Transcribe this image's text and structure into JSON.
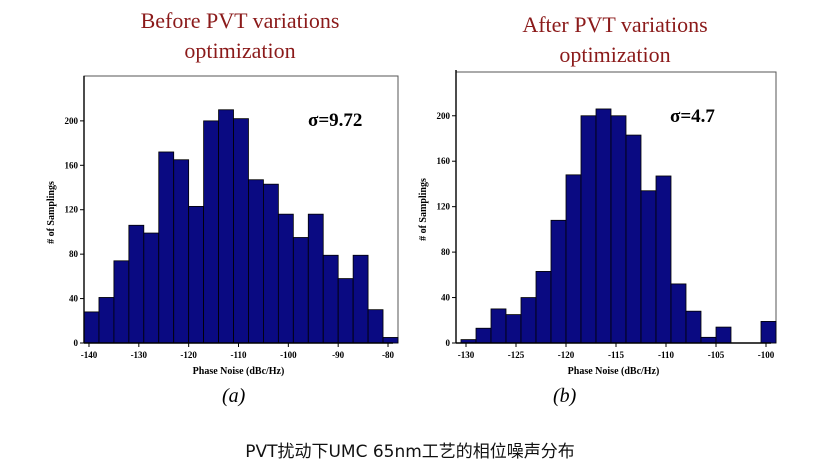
{
  "caption": "PVT扰动下UMC 65nm工艺的相位噪声分布",
  "colors": {
    "bar": "#0a0a82",
    "title": "#8b1a1a"
  },
  "chart_data": [
    {
      "type": "bar",
      "title": "Before PVT variations optimization",
      "title_lines": [
        "Before PVT variations",
        "optimization"
      ],
      "subfigure": "(a)",
      "annotation": "σ=9.72",
      "xlabel": "Phase Noise (dBc/Hz)",
      "ylabel": "# of Samplings",
      "xlim": [
        -141,
        -79
      ],
      "ylim": [
        0,
        235
      ],
      "xticks": [
        -140,
        -130,
        -120,
        -110,
        -100,
        -90,
        -80
      ],
      "yticks": [
        0,
        40,
        80,
        120,
        160,
        200
      ],
      "bin_width": 3,
      "bin_starts": [
        -141,
        -138,
        -135,
        -132,
        -129,
        -126,
        -123,
        -120,
        -117,
        -114,
        -111,
        -108,
        -105,
        -102,
        -99,
        -96,
        -93,
        -90,
        -87,
        -84,
        -81
      ],
      "values": [
        28,
        41,
        74,
        106,
        99,
        172,
        165,
        123,
        200,
        210,
        202,
        147,
        143,
        116,
        95,
        116,
        79,
        58,
        79,
        30,
        5
      ],
      "grid": false
    },
    {
      "type": "bar",
      "title": "After PVT variations optimization",
      "title_lines": [
        "After PVT variations",
        "optimization"
      ],
      "subfigure": "(b)",
      "annotation": "σ=4.7",
      "xlabel": "Phase Noise (dBc/Hz)",
      "ylabel": "# of Samplings",
      "xlim": [
        -131,
        -99.5
      ],
      "ylim": [
        0,
        235
      ],
      "xticks": [
        -130,
        -125,
        -120,
        -115,
        -110,
        -105,
        -100
      ],
      "yticks": [
        0,
        40,
        80,
        120,
        160,
        200
      ],
      "bin_width": 1.5,
      "bin_starts": [
        -130.5,
        -129,
        -127.5,
        -126,
        -124.5,
        -123,
        -121.5,
        -120,
        -118.5,
        -117,
        -115.5,
        -114,
        -112.5,
        -111,
        -109.5,
        -108,
        -106.5,
        -105,
        -103.5,
        -102,
        -100.5
      ],
      "values": [
        3,
        13,
        30,
        25,
        40,
        63,
        108,
        148,
        200,
        206,
        200,
        183,
        134,
        147,
        52,
        28,
        5,
        14,
        0,
        0,
        19
      ],
      "grid": false
    }
  ]
}
